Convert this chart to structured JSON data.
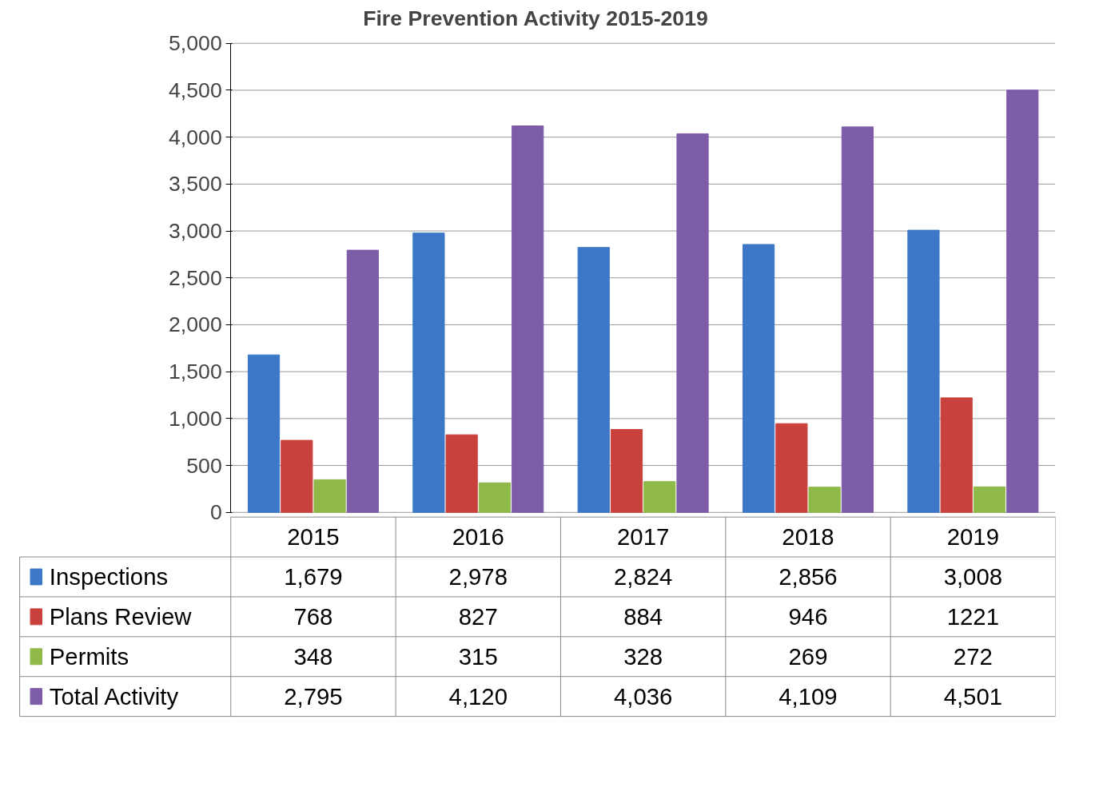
{
  "chart_data": {
    "type": "bar",
    "title": "Fire Prevention Activity 2015-2019",
    "categories": [
      "2015",
      "2016",
      "2017",
      "2018",
      "2019"
    ],
    "series": [
      {
        "name": "Inspections",
        "color": "#3d78c8",
        "values": [
          1679,
          2978,
          2824,
          2856,
          3008
        ],
        "value_labels": [
          "1,679",
          "2,978",
          "2,824",
          "2,856",
          "3,008"
        ]
      },
      {
        "name": "Plans Review",
        "color": "#c9413c",
        "values": [
          768,
          827,
          884,
          946,
          1221
        ],
        "value_labels": [
          "768",
          "827",
          "884",
          "946",
          "1221"
        ]
      },
      {
        "name": "Permits",
        "color": "#8fb949",
        "values": [
          348,
          315,
          328,
          269,
          272
        ],
        "value_labels": [
          "348",
          "315",
          "328",
          "269",
          "272"
        ]
      },
      {
        "name": "Total Activity",
        "color": "#7d5ca8",
        "values": [
          2795,
          4120,
          4036,
          4109,
          4501
        ],
        "value_labels": [
          "2,795",
          "4,120",
          "4,036",
          "4,109",
          "4,501"
        ]
      }
    ],
    "ylim": [
      0,
      5000
    ],
    "yticks": [
      {
        "value": 0,
        "label": "0"
      },
      {
        "value": 500,
        "label": "500"
      },
      {
        "value": 1000,
        "label": "1,000"
      },
      {
        "value": 1500,
        "label": "1,500"
      },
      {
        "value": 2000,
        "label": "2,000"
      },
      {
        "value": 2500,
        "label": "2,500"
      },
      {
        "value": 3000,
        "label": "3,000"
      },
      {
        "value": 3500,
        "label": "3,500"
      },
      {
        "value": 4000,
        "label": "4,000"
      },
      {
        "value": 4500,
        "label": "4,500"
      },
      {
        "value": 5000,
        "label": "5,000"
      }
    ],
    "grid": "y",
    "legend": "bottom left"
  }
}
